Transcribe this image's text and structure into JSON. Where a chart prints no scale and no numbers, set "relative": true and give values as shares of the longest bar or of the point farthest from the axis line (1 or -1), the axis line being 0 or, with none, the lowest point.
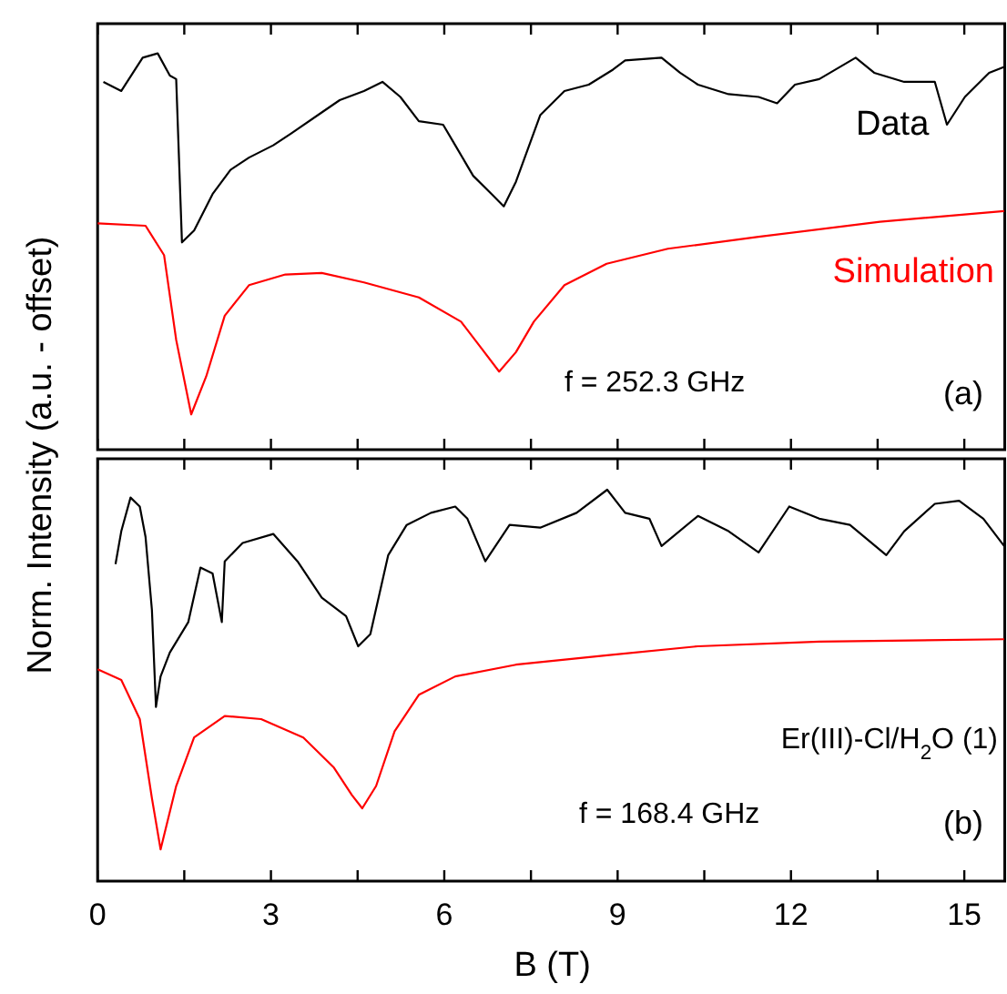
{
  "chart_data": [
    {
      "type": "line",
      "relative": true,
      "ylabel": "Norm. Intensity (a.u. - offset)",
      "xlim": [
        0,
        15.7
      ],
      "xticks": [
        0,
        {
          "value": 1.5,
          "label": null
        },
        3,
        {
          "value": 4.5,
          "label": null
        },
        6,
        {
          "value": 7.5,
          "label": null
        },
        9,
        {
          "value": 10.5,
          "label": null
        },
        12,
        {
          "value": 13.5,
          "label": null
        },
        15
      ],
      "tick_labels": false,
      "legend": false,
      "annotations": [
        "f = 252.3 GHz",
        "(a)"
      ],
      "series": [
        {
          "name": "Data",
          "color": "#000000",
          "x": [
            0.1,
            0.41,
            0.78,
            1.04,
            1.25,
            1.36,
            1.46,
            1.67,
            1.99,
            2.3,
            2.62,
            3.04,
            3.35,
            3.88,
            4.19,
            4.61,
            4.93,
            5.24,
            5.56,
            5.98,
            6.19,
            6.5,
            6.82,
            7.03,
            7.24,
            7.66,
            8.08,
            8.5,
            8.92,
            9.13,
            9.76,
            10.08,
            10.39,
            10.92,
            11.44,
            11.76,
            12.07,
            12.49,
            13.12,
            13.44,
            13.96,
            14.49,
            14.7,
            15.01,
            15.43,
            15.69
          ],
          "values": [
            0.928,
            0.905,
            0.989,
            1,
            0.944,
            0.935,
            0.523,
            0.553,
            0.645,
            0.706,
            0.737,
            0.768,
            0.798,
            0.851,
            0.882,
            0.905,
            0.928,
            0.89,
            0.829,
            0.82,
            0.768,
            0.691,
            0.645,
            0.614,
            0.676,
            0.844,
            0.905,
            0.921,
            0.959,
            0.982,
            0.989,
            0.951,
            0.921,
            0.897,
            0.89,
            0.874,
            0.921,
            0.935,
            0.989,
            0.951,
            0.928,
            0.928,
            0.82,
            0.89,
            0.951,
            0.966
          ]
        },
        {
          "name": "Simulation",
          "color": "#ff0000",
          "x": [
            0,
            0.83,
            1.15,
            1.36,
            1.62,
            1.88,
            2.2,
            2.62,
            3.25,
            3.88,
            4.61,
            5.56,
            6.29,
            6.61,
            6.95,
            7.24,
            7.55,
            8.08,
            8.81,
            9.87,
            11.44,
            13.54,
            15.69
          ],
          "values": [
            0.571,
            0.565,
            0.491,
            0.277,
            0.089,
            0.185,
            0.338,
            0.415,
            0.442,
            0.446,
            0.422,
            0.384,
            0.323,
            0.262,
            0.197,
            0.246,
            0.323,
            0.415,
            0.469,
            0.507,
            0.537,
            0.575,
            0.602
          ]
        }
      ]
    },
    {
      "type": "line",
      "relative": true,
      "xlabel": "B (T)",
      "xlim": [
        0,
        15.7
      ],
      "xticks": [
        0,
        {
          "value": 1.5,
          "label": null
        },
        3,
        {
          "value": 4.5,
          "label": null
        },
        6,
        {
          "value": 7.5,
          "label": null
        },
        9,
        {
          "value": 10.5,
          "label": null
        },
        12,
        {
          "value": 13.5,
          "label": null
        },
        15
      ],
      "tick_labels": "x",
      "legend": false,
      "annotations": [
        "Er(III)-Cl/H$_{2}$O (1)",
        "f = 168.4 GHz",
        "(b)"
      ],
      "series": [
        {
          "color": "#000000",
          "x": [
            0.31,
            0.41,
            0.57,
            0.73,
            0.83,
            0.94,
            1.01,
            1.09,
            1.25,
            1.57,
            1.78,
            1.99,
            2.15,
            2.2,
            2.51,
            3.04,
            3.46,
            3.88,
            4.3,
            4.51,
            4.72,
            5.03,
            5.35,
            5.77,
            6.19,
            6.4,
            6.71,
            7.13,
            7.66,
            8.29,
            8.82,
            9.13,
            9.55,
            9.76,
            10.39,
            10.92,
            11.44,
            11.97,
            12.49,
            13.02,
            13.65,
            13.96,
            14.49,
            14.91,
            15.33,
            15.69
          ],
          "values": [
            0.81,
            0.894,
            0.98,
            0.957,
            0.879,
            0.693,
            0.445,
            0.523,
            0.584,
            0.662,
            0.801,
            0.786,
            0.662,
            0.817,
            0.864,
            0.887,
            0.817,
            0.724,
            0.677,
            0.6,
            0.631,
            0.833,
            0.91,
            0.941,
            0.957,
            0.926,
            0.817,
            0.91,
            0.903,
            0.941,
            1,
            0.941,
            0.926,
            0.856,
            0.933,
            0.894,
            0.84,
            0.957,
            0.926,
            0.91,
            0.833,
            0.894,
            0.964,
            0.972,
            0.926,
            0.856
          ]
        },
        {
          "color": "#ff0000",
          "x": [
            0,
            0.41,
            0.73,
            0.94,
            1.09,
            1.36,
            1.67,
            2.2,
            2.83,
            3.56,
            4.09,
            4.4,
            4.58,
            4.82,
            5.14,
            5.56,
            6.19,
            7.24,
            8.82,
            10.39,
            12.49,
            15.69
          ],
          "values": [
            0.541,
            0.514,
            0.414,
            0.212,
            0.081,
            0.243,
            0.367,
            0.422,
            0.414,
            0.367,
            0.29,
            0.22,
            0.186,
            0.243,
            0.383,
            0.476,
            0.523,
            0.553,
            0.577,
            0.6,
            0.612,
            0.618
          ]
        }
      ]
    }
  ]
}
